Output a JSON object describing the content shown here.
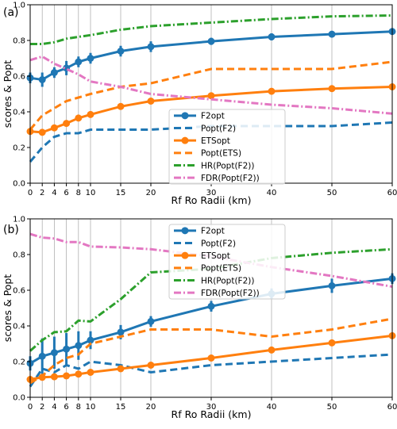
{
  "chart_data": [
    {
      "type": "line",
      "panel_label": "(a)",
      "xlabel": "Rf Ro Radii (km)",
      "ylabel": "scores & Popt",
      "xlim": [
        0,
        60
      ],
      "ylim": [
        0,
        1.0
      ],
      "x_ticks": [
        0,
        2,
        4,
        6,
        8,
        10,
        15,
        20,
        30,
        40,
        50,
        60
      ],
      "y_ticks": [
        "0.0",
        "0.2",
        "0.4",
        "0.6",
        "0.8",
        "1.0"
      ],
      "grid": "vertical",
      "legend_position": "lower-center",
      "x": [
        0,
        2,
        4,
        6,
        8,
        10,
        15,
        20,
        30,
        40,
        50,
        60
      ],
      "series": [
        {
          "name": "F2opt",
          "color": "#1f77b4",
          "style": "solid-marker",
          "values": [
            0.59,
            0.58,
            0.62,
            0.645,
            0.68,
            0.7,
            0.74,
            0.765,
            0.795,
            0.82,
            0.835,
            0.85
          ],
          "errors": [
            0.03,
            0.04,
            0.03,
            0.04,
            0.03,
            0.03,
            0.03,
            0.03,
            0.02,
            0.02,
            0.015,
            0.015
          ]
        },
        {
          "name": "Popt(F2)",
          "color": "#1f77b4",
          "style": "dashed",
          "values": [
            0.12,
            0.2,
            0.26,
            0.28,
            0.28,
            0.3,
            0.3,
            0.3,
            0.32,
            0.32,
            0.32,
            0.34
          ]
        },
        {
          "name": "ETSopt",
          "color": "#ff7f0e",
          "style": "solid-marker",
          "values": [
            0.29,
            0.285,
            0.31,
            0.335,
            0.365,
            0.385,
            0.43,
            0.46,
            0.49,
            0.515,
            0.53,
            0.54
          ],
          "errors": [
            0.01,
            0.01,
            0.01,
            0.01,
            0.01,
            0.01,
            0.01,
            0.01,
            0.01,
            0.01,
            0.01,
            0.01
          ]
        },
        {
          "name": "Popt(ETS)",
          "color": "#ff7f0e",
          "style": "dashed",
          "values": [
            0.3,
            0.38,
            0.42,
            0.46,
            0.48,
            0.5,
            0.54,
            0.56,
            0.64,
            0.64,
            0.64,
            0.68
          ]
        },
        {
          "name": "HR(Popt(F2))",
          "color": "#2ca02c",
          "style": "dashdot",
          "values": [
            0.78,
            0.78,
            0.79,
            0.81,
            0.82,
            0.83,
            0.86,
            0.88,
            0.9,
            0.92,
            0.935,
            0.94
          ]
        },
        {
          "name": "FDR(Popt(F2))",
          "color": "#e377c2",
          "style": "dashdot",
          "values": [
            0.69,
            0.71,
            0.67,
            0.64,
            0.61,
            0.57,
            0.54,
            0.5,
            0.47,
            0.44,
            0.42,
            0.39
          ]
        }
      ]
    },
    {
      "type": "line",
      "panel_label": "(b)",
      "xlabel": "Rf Ro Radii (km)",
      "ylabel": "scores & Popt",
      "xlim": [
        0,
        60
      ],
      "ylim": [
        0,
        1.0
      ],
      "x_ticks": [
        0,
        2,
        4,
        6,
        8,
        10,
        15,
        20,
        30,
        40,
        50,
        60
      ],
      "y_ticks": [
        "0.0",
        "0.2",
        "0.4",
        "0.6",
        "0.8",
        "1.0"
      ],
      "grid": "vertical",
      "legend_position": "upper-center",
      "x": [
        0,
        2,
        4,
        6,
        8,
        10,
        15,
        20,
        30,
        40,
        50,
        60
      ],
      "series": [
        {
          "name": "F2opt",
          "color": "#1f77b4",
          "style": "solid-marker",
          "values": [
            0.19,
            0.23,
            0.25,
            0.27,
            0.29,
            0.32,
            0.365,
            0.425,
            0.51,
            0.58,
            0.625,
            0.665
          ],
          "errors": [
            0.04,
            0.1,
            0.09,
            0.09,
            0.08,
            0.05,
            0.04,
            0.03,
            0.03,
            0.03,
            0.04,
            0.03
          ]
        },
        {
          "name": "Popt(F2)",
          "color": "#1f77b4",
          "style": "dashed",
          "values": [
            0.06,
            0.16,
            0.14,
            0.18,
            0.16,
            0.2,
            0.18,
            0.14,
            0.18,
            0.2,
            0.22,
            0.24
          ]
        },
        {
          "name": "ETSopt",
          "color": "#ff7f0e",
          "style": "solid-marker",
          "values": [
            0.1,
            0.112,
            0.115,
            0.12,
            0.13,
            0.14,
            0.16,
            0.18,
            0.22,
            0.265,
            0.305,
            0.345
          ],
          "errors": [
            0.01,
            0.01,
            0.01,
            0.01,
            0.01,
            0.01,
            0.01,
            0.01,
            0.01,
            0.01,
            0.01,
            0.01
          ]
        },
        {
          "name": "Popt(ETS)",
          "color": "#ff7f0e",
          "style": "dashed",
          "values": [
            0.08,
            0.12,
            0.18,
            0.22,
            0.24,
            0.3,
            0.34,
            0.38,
            0.38,
            0.34,
            0.38,
            0.44
          ]
        },
        {
          "name": "HR(Popt(F2))",
          "color": "#2ca02c",
          "style": "dashdot",
          "values": [
            0.26,
            0.32,
            0.365,
            0.37,
            0.43,
            0.425,
            0.55,
            0.7,
            0.72,
            0.78,
            0.81,
            0.83
          ]
        },
        {
          "name": "FDR(Popt(F2))",
          "color": "#e377c2",
          "style": "dashdot",
          "values": [
            0.915,
            0.895,
            0.89,
            0.87,
            0.87,
            0.845,
            0.84,
            0.83,
            0.79,
            0.73,
            0.68,
            0.62
          ]
        }
      ]
    }
  ]
}
